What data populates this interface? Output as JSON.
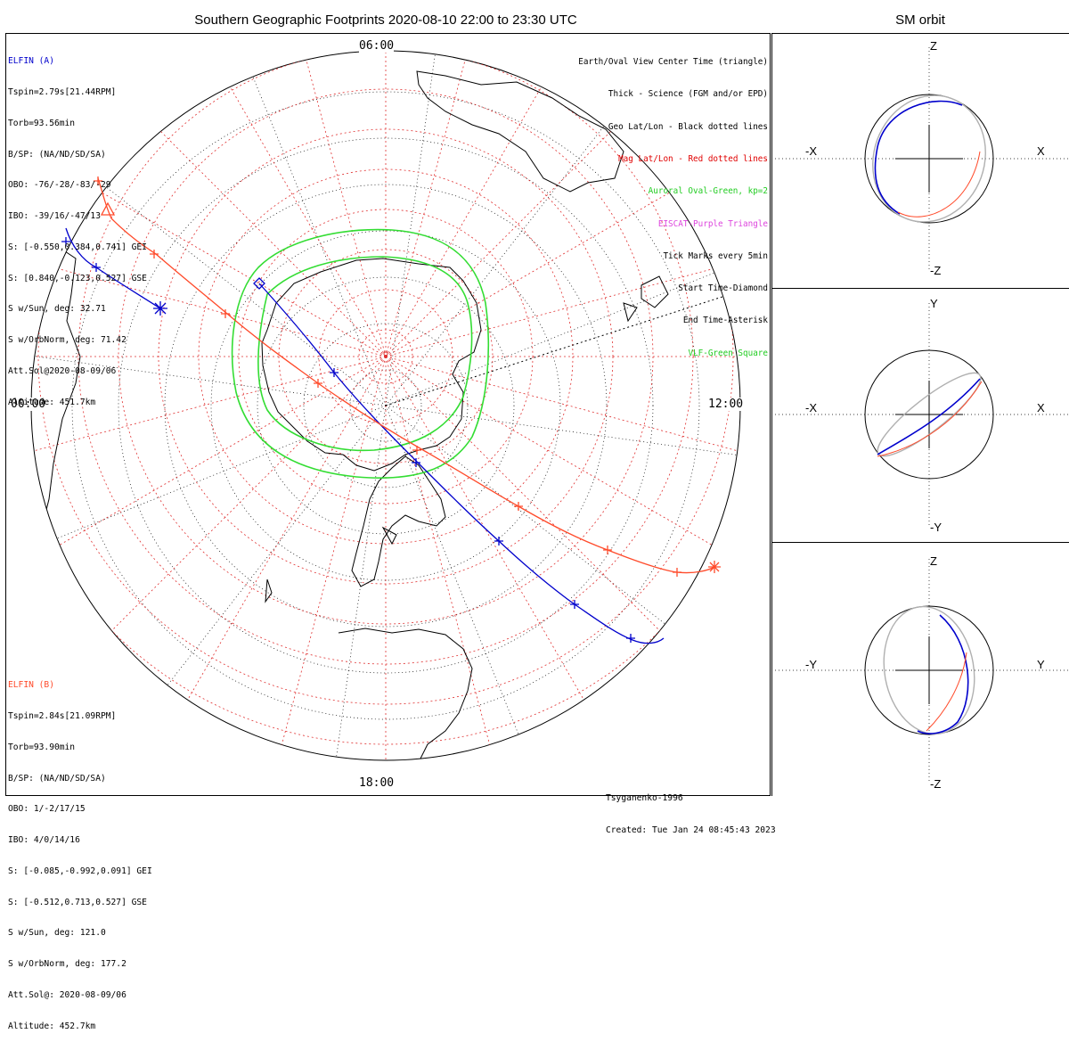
{
  "title": "Southern Geographic Footprints 2020-08-10 22:00 to 23:30 UTC",
  "sm_title": "SM orbit",
  "time_labels": {
    "top": "06:00",
    "left": "00:00",
    "right": "12:00",
    "bottom": "18:00"
  },
  "elfin_a": {
    "name": "ELFIN (A)",
    "color": "#0000cc",
    "lines": [
      "Tspin=2.79s[21.44RPM]",
      "Torb=93.56min",
      "B/SP: (NA/ND/SD/SA)",
      "OBO: -76/-28/-83/-29",
      "IBO: -39/16/-47/13",
      "S: [-0.550,0.384,0.741] GEI",
      "S: [0.840,-0.123,0.527] GSE",
      "S w/Sun, deg: 32.71",
      "S w/OrbNorm, deg: 71.42",
      "Att.Sol@2020-08-09/06",
      "Altitude: 451.7km"
    ]
  },
  "elfin_b": {
    "name": "ELFIN (B)",
    "color": "#ff4a2a",
    "lines": [
      "Tspin=2.84s[21.09RPM]",
      "Torb=93.90min",
      "B/SP: (NA/ND/SD/SA)",
      "OBO: 1/-2/17/15",
      "IBO: 4/0/14/16",
      "S: [-0.085,-0.992,0.091] GEI",
      "S: [-0.512,0.713,0.527] GSE",
      "S w/Sun, deg: 121.0",
      "S w/OrbNorm, deg: 177.2",
      "Att.Sol@: 2020-08-09/06",
      "Altitude: 452.7km"
    ]
  },
  "legend": [
    {
      "text": "Earth/Oval View Center Time (triangle)",
      "color": "#000000"
    },
    {
      "text": "Thick - Science (FGM and/or EPD)",
      "color": "#000000"
    },
    {
      "text": "Geo Lat/Lon - Black dotted lines",
      "color": "#000000"
    },
    {
      "text": "Mag Lat/Lon - Red dotted lines",
      "color": "#e00000"
    },
    {
      "text": "Auroral Oval-Green, kp=2",
      "color": "#22cc22"
    },
    {
      "text": "EISCAT-Purple Triangle",
      "color": "#dd44dd"
    },
    {
      "text": "Tick Marks every 5min",
      "color": "#000000"
    },
    {
      "text": "Start Time-Diamond",
      "color": "#000000"
    },
    {
      "text": "End Time-Asterisk",
      "color": "#000000"
    },
    {
      "text": "VLF-Green Square",
      "color": "#22cc22"
    }
  ],
  "footer": {
    "model": "Tsyganenko-1996",
    "created": "Created: Tue Jan 24 08:45:43 2023"
  },
  "sm_panels": [
    {
      "name": "xz",
      "top": "Z",
      "bottom": "-Z",
      "left": "-X",
      "right": "X"
    },
    {
      "name": "xy",
      "top": "Y",
      "bottom": "-Y",
      "left": "-X",
      "right": "X"
    },
    {
      "name": "yz",
      "top": "Z",
      "bottom": "-Z",
      "left": "-Y",
      "right": "Y"
    }
  ],
  "colors": {
    "elfin_a": "#0000cc",
    "elfin_b": "#ff4a2a",
    "aurora": "#33dd33",
    "mag_grid": "#e03030",
    "geo_grid": "#000000",
    "sm_orbit_gray": "#b0b0b0"
  }
}
